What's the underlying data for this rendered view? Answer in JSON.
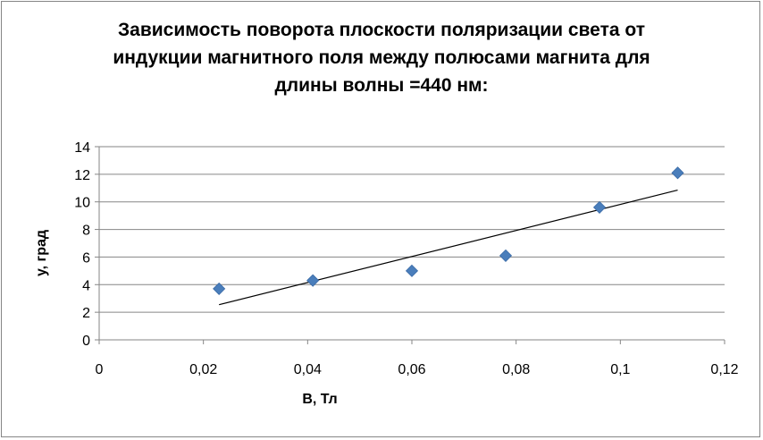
{
  "chart_data": {
    "type": "scatter",
    "title_lines": [
      "Зависимость  поворота плоскости поляризации света от",
      "индукции магнитного поля между полюсами магнита для",
      "длины волны =440 нм:"
    ],
    "xlabel": "B, Тл",
    "ylabel": "у, град",
    "xlim": [
      0,
      0.12
    ],
    "ylim": [
      0,
      14
    ],
    "x_ticks": [
      0,
      0.02,
      0.04,
      0.06,
      0.08,
      0.1,
      0.12
    ],
    "x_tick_labels": [
      "0",
      "0,02",
      "0,04",
      "0,06",
      "0,08",
      "0,1",
      "0,12"
    ],
    "y_ticks": [
      0,
      2,
      4,
      6,
      8,
      10,
      12,
      14
    ],
    "y_tick_labels": [
      "0",
      "2",
      "4",
      "6",
      "8",
      "10",
      "12",
      "14"
    ],
    "grid": "horizontal",
    "legend": "none",
    "marker": "diamond",
    "marker_color": "#4a7ebb",
    "series": [
      {
        "x": [
          0.023,
          0.041,
          0.06,
          0.078,
          0.096,
          0.111
        ],
        "y": [
          3.7,
          4.3,
          5.0,
          6.1,
          9.6,
          12.1
        ]
      }
    ],
    "trendline": {
      "type": "linear",
      "color": "#000000",
      "from": [
        0.023,
        2.55
      ],
      "to": [
        0.111,
        10.85
      ]
    }
  }
}
